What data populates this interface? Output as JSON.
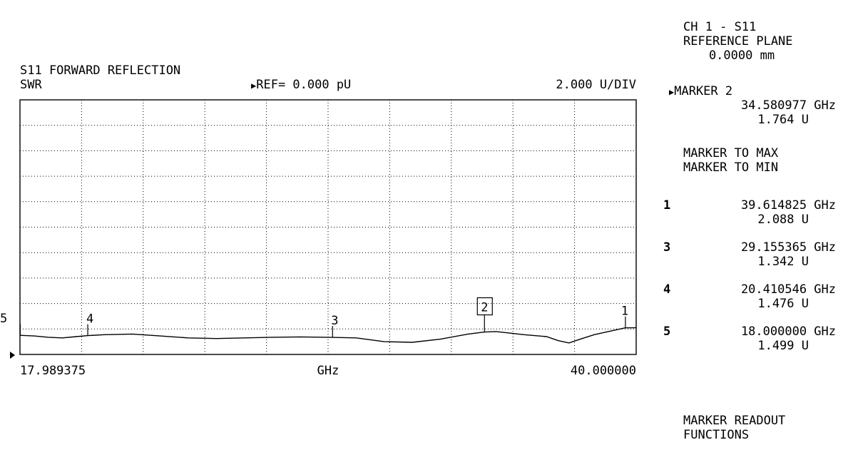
{
  "header": {
    "title": "S11 FORWARD REFLECTION",
    "format": "SWR",
    "reference": "REF= 0.000 pU",
    "scale": "2.000 U/DIV"
  },
  "x_axis": {
    "start": "17.989375",
    "unit": "GHz",
    "stop": "40.000000"
  },
  "panel": {
    "channel": "CH 1 - S11",
    "reference_plane_label": "REFERENCE PLANE",
    "reference_plane_value": "0.0000 mm",
    "active_marker_label": "MARKER 2",
    "active_marker_freq": "34.580977 GHz",
    "active_marker_value": "1.764 U",
    "menu_marker_to_max": "MARKER TO MAX",
    "menu_marker_to_min": "MARKER TO MIN",
    "markers": [
      {
        "num": "1",
        "freq": "39.614825 GHz",
        "value": "2.088 U"
      },
      {
        "num": "3",
        "freq": "29.155365 GHz",
        "value": "1.342 U"
      },
      {
        "num": "4",
        "freq": "20.410546 GHz",
        "value": "1.476 U"
      },
      {
        "num": "5",
        "freq": "18.000000 GHz",
        "value": "1.499 U"
      }
    ],
    "menu_readout": "MARKER READOUT\nFUNCTIONS"
  },
  "chart_data": {
    "type": "line",
    "title": "S11 FORWARD REFLECTION",
    "xlabel": "GHz",
    "ylabel": "SWR",
    "xlim": [
      17.989375,
      40.0
    ],
    "ylim": [
      0,
      20
    ],
    "grid": true,
    "series": [
      {
        "x": [
          17.99,
          18.5,
          19.0,
          19.5,
          20.0,
          20.41,
          21.0,
          22.0,
          23.0,
          24.0,
          25.0,
          26.0,
          27.0,
          28.0,
          29.155,
          30.0,
          31.0,
          32.0,
          33.0,
          34.0,
          34.58,
          35.0,
          36.0,
          36.8,
          37.2,
          37.6,
          38.0,
          38.5,
          39.0,
          39.61,
          40.0
        ],
        "y": [
          1.5,
          1.45,
          1.35,
          1.3,
          1.4,
          1.48,
          1.55,
          1.6,
          1.45,
          1.3,
          1.25,
          1.3,
          1.35,
          1.38,
          1.34,
          1.3,
          1.0,
          0.95,
          1.2,
          1.6,
          1.76,
          1.8,
          1.55,
          1.4,
          1.1,
          0.9,
          1.2,
          1.55,
          1.8,
          2.09,
          2.1
        ]
      }
    ],
    "markers": [
      {
        "label": "1",
        "x": 39.614825,
        "y": 2.088
      },
      {
        "label": "2",
        "x": 34.580977,
        "y": 1.764,
        "active": true
      },
      {
        "label": "3",
        "x": 29.155365,
        "y": 1.342
      },
      {
        "label": "4",
        "x": 20.410546,
        "y": 1.476
      },
      {
        "label": "5",
        "x": 18.0,
        "y": 1.499
      }
    ]
  }
}
